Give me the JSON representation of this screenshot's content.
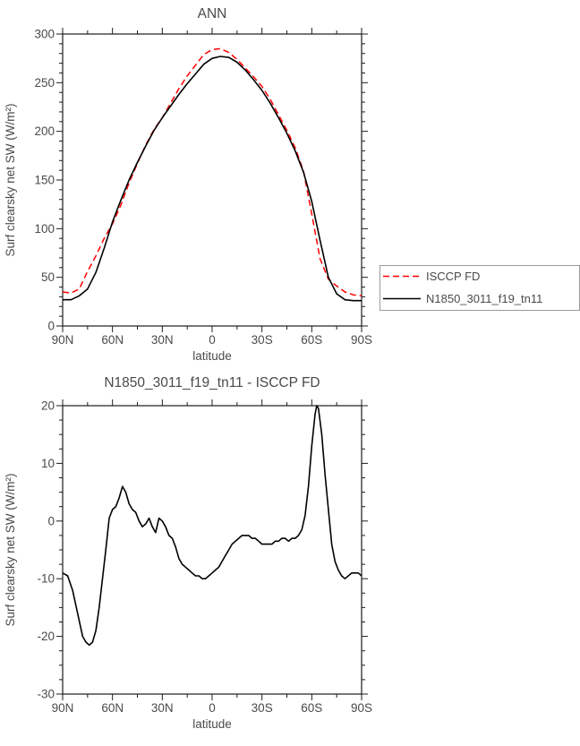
{
  "page": {
    "background": "#ffffff"
  },
  "colors": {
    "isccp": "#ff0000",
    "model": "#000000",
    "frame": "#1c1c1c",
    "text": "#4a4a4a",
    "legend_border": "#9a9a9a"
  },
  "legend": {
    "entries": [
      {
        "label": "ISCCP FD"
      },
      {
        "label": "N1850_3011_f19_tn11"
      }
    ]
  },
  "chart_data": [
    {
      "type": "line",
      "title": "ANN",
      "xlabel": "latitude",
      "ylabel": "Surf clearsky net SW (W/m²)",
      "xlim": [
        90,
        -90
      ],
      "ylim": [
        0,
        300
      ],
      "grid": false,
      "xticks": {
        "values": [
          90,
          60,
          30,
          0,
          -30,
          -60,
          -90
        ],
        "labels": [
          "90N",
          "60N",
          "30N",
          "0",
          "30S",
          "60S",
          "90S"
        ]
      },
      "yticks": {
        "values": [
          0,
          50,
          100,
          150,
          200,
          250,
          300
        ],
        "labels": [
          "0",
          "50",
          "100",
          "150",
          "200",
          "250",
          "300"
        ]
      },
      "minor_x": 15,
      "minor_y": 10,
      "legend": {
        "position": "outside-right",
        "entries": [
          "ISCCP FD",
          "N1850_3011_f19_tn11"
        ]
      },
      "x": [
        90,
        85,
        80,
        75,
        70,
        65,
        60,
        55,
        50,
        45,
        40,
        35,
        30,
        25,
        20,
        15,
        10,
        5,
        0,
        -5,
        -10,
        -15,
        -20,
        -25,
        -30,
        -35,
        -40,
        -45,
        -50,
        -55,
        -60,
        -65,
        -70,
        -75,
        -80,
        -85,
        -90
      ],
      "series": [
        {
          "name": "ISCCP FD",
          "color": "#ff0000",
          "line_style": "dashed",
          "width": 1.5,
          "y": [
            35,
            34,
            38,
            56,
            72,
            90,
            105,
            124,
            147,
            167,
            186,
            202,
            214,
            229,
            244,
            257,
            268,
            279,
            284,
            285,
            281,
            274,
            265,
            256,
            246,
            233,
            217,
            201,
            183,
            159,
            115,
            69,
            48,
            41,
            35,
            32,
            31
          ]
        },
        {
          "name": "N1850_3011_f19_tn11",
          "color": "#000000",
          "line_style": "solid",
          "width": 1.6,
          "y": [
            27,
            27,
            31,
            38,
            55,
            80,
            107,
            129,
            150,
            168,
            185,
            201,
            214,
            226,
            238,
            249,
            259,
            269,
            275,
            277,
            276,
            271,
            263,
            253,
            242,
            229,
            214,
            198,
            180,
            158,
            128,
            88,
            50,
            33,
            27,
            26,
            26
          ]
        }
      ]
    },
    {
      "type": "line",
      "title": "N1850_3011_f19_tn11 - ISCCP FD",
      "xlabel": "latitude",
      "ylabel": "Surf clearsky net SW (W/m²)",
      "xlim": [
        90,
        -90
      ],
      "ylim": [
        -30,
        20
      ],
      "grid": false,
      "xticks": {
        "values": [
          90,
          60,
          30,
          0,
          -30,
          -60,
          -90
        ],
        "labels": [
          "90N",
          "60N",
          "30N",
          "0",
          "30S",
          "60S",
          "90S"
        ]
      },
      "yticks": {
        "values": [
          -30,
          -20,
          -10,
          0,
          10,
          20
        ],
        "labels": [
          "-30",
          "-20",
          "-10",
          "0",
          "10",
          "20"
        ]
      },
      "minor_x": 15,
      "minor_y": 2.5,
      "x": [
        90,
        87,
        84,
        81,
        78,
        76,
        74,
        72,
        70,
        68,
        66,
        64,
        62,
        60,
        58,
        56,
        54,
        52,
        50,
        48,
        46,
        44,
        42,
        40,
        38,
        36,
        34,
        32,
        30,
        28,
        26,
        24,
        22,
        20,
        18,
        16,
        14,
        12,
        10,
        8,
        6,
        4,
        2,
        0,
        -2,
        -4,
        -6,
        -8,
        -10,
        -12,
        -14,
        -16,
        -18,
        -20,
        -22,
        -24,
        -26,
        -28,
        -30,
        -32,
        -34,
        -36,
        -38,
        -40,
        -42,
        -44,
        -46,
        -48,
        -50,
        -52,
        -54,
        -56,
        -58,
        -60,
        -62,
        -63,
        -64,
        -66,
        -68,
        -70,
        -72,
        -74,
        -76,
        -78,
        -80,
        -82,
        -84,
        -86,
        -88,
        -90
      ],
      "series": [
        {
          "name": "N1850_3011_f19_tn11 - ISCCP FD",
          "color": "#000000",
          "line_style": "solid",
          "width": 1.6,
          "y": [
            -9,
            -9.5,
            -12,
            -16,
            -20,
            -21,
            -21.5,
            -21,
            -19,
            -15,
            -10,
            -5,
            0.5,
            2,
            2.5,
            4,
            6,
            5,
            3,
            2,
            1.5,
            0,
            -1,
            -0.5,
            0.5,
            -1,
            -2,
            0.5,
            0,
            -1,
            -2.5,
            -3,
            -4.5,
            -6.5,
            -7.5,
            -8,
            -8.5,
            -9,
            -9.5,
            -9.5,
            -10,
            -10,
            -9.5,
            -9,
            -8.5,
            -8,
            -7,
            -6,
            -5,
            -4,
            -3.5,
            -3,
            -2.5,
            -2.5,
            -2.5,
            -3,
            -3,
            -3.5,
            -4,
            -4,
            -4,
            -4,
            -3.5,
            -3.5,
            -3,
            -3,
            -3.5,
            -3,
            -3,
            -2.5,
            -1.5,
            1,
            6,
            13,
            18.5,
            20,
            19.5,
            15,
            8,
            2,
            -4,
            -7,
            -8.5,
            -9.5,
            -10,
            -9.5,
            -9,
            -9,
            -9,
            -9.5
          ]
        }
      ]
    }
  ]
}
